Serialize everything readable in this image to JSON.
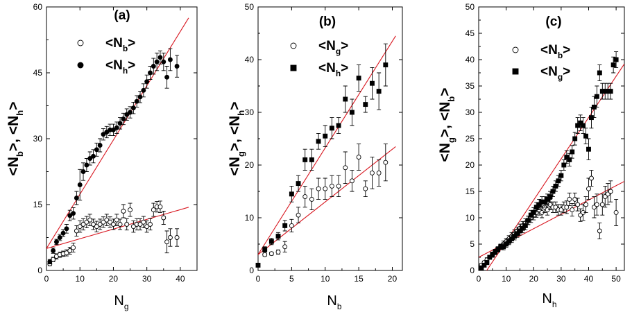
{
  "chart_data": [
    {
      "panel": "(a)",
      "type": "scatter",
      "xlabel": {
        "main": "N",
        "sub": "g"
      },
      "ylabel": {
        "a_main": "<N",
        "a_sub": "b",
        "sep": ">, ",
        "b_main": "<N",
        "b_sub": "h",
        "end": ">"
      },
      "xlim": [
        0,
        45
      ],
      "ylim": [
        0,
        60
      ],
      "xticks": [
        0,
        10,
        20,
        30,
        40
      ],
      "yticks": [
        0,
        15,
        30,
        45,
        60
      ],
      "xtick_labels": [
        "0",
        "10",
        "20",
        "30",
        "40"
      ],
      "ytick_labels": [
        "0",
        "15",
        "30",
        "45",
        "60"
      ],
      "legend": [
        {
          "open": true,
          "marker": "circle",
          "main": "<N",
          "sub": "b",
          "end": ">"
        },
        {
          "open": false,
          "marker": "circle",
          "main": "<N",
          "sub": "h",
          "end": ">"
        }
      ],
      "series": [
        {
          "marker": "circle",
          "open": true,
          "x": [
            1,
            2,
            3,
            4,
            5,
            6,
            7,
            8,
            9,
            10,
            11,
            12,
            13,
            14,
            15,
            16,
            17,
            18,
            19,
            20,
            21,
            22,
            23,
            24,
            25,
            26,
            27,
            28,
            29,
            30,
            31,
            32,
            33,
            34,
            35,
            36,
            37,
            39
          ],
          "y": [
            1.5,
            2.5,
            3.2,
            3.6,
            3.8,
            4.0,
            4.5,
            5.2,
            9.0,
            10.0,
            10.5,
            11.0,
            11.5,
            10.5,
            10.0,
            10.5,
            11.0,
            11.5,
            11.0,
            10.5,
            11.5,
            10.5,
            13.5,
            10.5,
            13.8,
            10.0,
            10.5,
            10.5,
            11.0,
            10.0,
            10.5,
            13.8,
            14.5,
            14.5,
            12.0,
            6.5,
            7.5,
            7.5
          ],
          "err": [
            0.4,
            0.5,
            0.6,
            0.6,
            0.6,
            0.7,
            0.8,
            1.0,
            1.2,
            1.3,
            1.3,
            1.3,
            1.3,
            1.2,
            1.2,
            1.2,
            1.2,
            1.3,
            1.2,
            1.2,
            1.3,
            1.2,
            1.5,
            1.3,
            1.5,
            1.3,
            1.3,
            1.3,
            1.3,
            1.3,
            1.3,
            1.5,
            1.2,
            1.3,
            1.5,
            2.5,
            2.0,
            2.0
          ]
        },
        {
          "marker": "circle",
          "open": false,
          "x": [
            1,
            2,
            3,
            4,
            5,
            6,
            7,
            8,
            9,
            10,
            11,
            12,
            13,
            14,
            15,
            16,
            17,
            18,
            19,
            20,
            21,
            22,
            23,
            24,
            25,
            26,
            27,
            28,
            29,
            30,
            31,
            32,
            33,
            34,
            35,
            36,
            37,
            39
          ],
          "y": [
            2.0,
            4.5,
            6.5,
            7.5,
            8.5,
            9.5,
            12.5,
            13.0,
            16.5,
            19.5,
            22.5,
            24.0,
            25.5,
            26.0,
            27.5,
            28.5,
            31.0,
            31.5,
            32.0,
            32.0,
            32.5,
            33.5,
            34.5,
            35.5,
            36.0,
            37.0,
            38.5,
            39.5,
            41.0,
            43.0,
            45.0,
            46.5,
            47.5,
            48.5,
            47.5,
            44.0,
            48.0,
            46.5
          ],
          "err": [
            0.5,
            0.6,
            0.6,
            0.7,
            0.8,
            1.0,
            1.2,
            1.3,
            1.5,
            3.5,
            2.0,
            1.5,
            1.5,
            1.5,
            1.5,
            1.5,
            1.3,
            1.3,
            1.3,
            1.3,
            1.3,
            1.3,
            1.3,
            1.3,
            1.3,
            1.3,
            1.3,
            1.3,
            1.5,
            1.5,
            1.5,
            1.8,
            2.0,
            1.5,
            2.0,
            2.5,
            2.5,
            2.5
          ]
        }
      ],
      "fits": [
        {
          "from": [
            0,
            5.0
          ],
          "to": [
            42.5,
            14.4
          ]
        },
        {
          "from": [
            0,
            5.0
          ],
          "to": [
            42.5,
            57.5
          ]
        }
      ]
    },
    {
      "panel": "(b)",
      "type": "scatter",
      "xlabel": {
        "main": "N",
        "sub": "b"
      },
      "ylabel": {
        "a_main": "<N",
        "a_sub": "g",
        "sep": ">, ",
        "b_main": "<N",
        "b_sub": "h",
        "end": ">"
      },
      "xlim": [
        0,
        21.5
      ],
      "ylim": [
        0,
        50
      ],
      "xticks": [
        0,
        5,
        10,
        15,
        20
      ],
      "yticks": [
        0,
        10,
        20,
        30,
        40,
        50
      ],
      "xtick_labels": [
        "0",
        "5",
        "10",
        "15",
        "20"
      ],
      "ytick_labels": [
        "0",
        "10",
        "20",
        "30",
        "40",
        "50"
      ],
      "legend": [
        {
          "open": true,
          "marker": "circle",
          "main": "<N",
          "sub": "g",
          "end": ">"
        },
        {
          "open": false,
          "marker": "square",
          "main": "<N",
          "sub": "h",
          "end": ">"
        }
      ],
      "series": [
        {
          "marker": "circle",
          "open": true,
          "x": [
            1,
            2,
            3,
            4,
            5,
            6,
            7,
            8,
            9,
            10,
            11,
            12,
            13,
            14,
            15,
            16,
            17,
            18,
            19
          ],
          "y": [
            3.0,
            3.2,
            3.5,
            4.5,
            8.5,
            10.5,
            14.0,
            13.5,
            15.5,
            15.5,
            16.0,
            16.0,
            19.5,
            17.0,
            21.5,
            15.5,
            18.5,
            18.5,
            20.5
          ],
          "err": [
            0.3,
            0.3,
            0.4,
            1.0,
            1.2,
            1.5,
            2.0,
            2.0,
            2.0,
            2.0,
            2.0,
            2.0,
            3.0,
            2.0,
            2.5,
            1.5,
            3.0,
            2.5,
            3.5
          ]
        },
        {
          "marker": "square",
          "open": false,
          "x": [
            0,
            1,
            2,
            3,
            4,
            5,
            6,
            7,
            8,
            9,
            10,
            11,
            12,
            13,
            14,
            15,
            16,
            17,
            18,
            19
          ],
          "y": [
            1.0,
            4.0,
            5.5,
            6.5,
            8.5,
            14.5,
            16.5,
            21.0,
            21.0,
            24.5,
            25.5,
            27.0,
            27.5,
            32.5,
            30.0,
            36.5,
            31.5,
            35.5,
            34.0,
            39.0
          ],
          "err": [
            0.3,
            0.5,
            0.6,
            0.7,
            1.0,
            1.5,
            1.5,
            2.0,
            2.0,
            1.5,
            2.0,
            2.0,
            1.5,
            2.5,
            2.5,
            2.5,
            1.5,
            3.0,
            3.5,
            4.0
          ]
        }
      ],
      "fits": [
        {
          "from": [
            0,
            3.0
          ],
          "to": [
            20.5,
            23.5
          ]
        },
        {
          "from": [
            0,
            3.0
          ],
          "to": [
            20.5,
            44.5
          ]
        }
      ]
    },
    {
      "panel": "(c)",
      "type": "scatter",
      "xlabel": {
        "main": "N",
        "sub": "h"
      },
      "ylabel": {
        "a_main": "<N",
        "a_sub": "g",
        "sep": ">, ",
        "b_main": "<N",
        "b_sub": "b",
        "end": ">"
      },
      "xlim": [
        0,
        53
      ],
      "ylim": [
        0,
        50
      ],
      "xticks": [
        0,
        10,
        20,
        30,
        40,
        50
      ],
      "yticks": [
        0,
        5,
        10,
        15,
        20,
        25,
        30,
        35,
        40,
        45,
        50
      ],
      "xtick_labels": [
        "0",
        "10",
        "20",
        "30",
        "40",
        "50"
      ],
      "ytick_labels": [
        "0",
        "5",
        "10",
        "15",
        "20",
        "25",
        "30",
        "35",
        "40",
        "45",
        "50"
      ],
      "legend": [
        {
          "open": true,
          "marker": "circle",
          "main": "<N",
          "sub": "b",
          "end": ">"
        },
        {
          "open": false,
          "marker": "square",
          "main": "<N",
          "sub": "g",
          "end": ">"
        }
      ],
      "series": [
        {
          "marker": "circle",
          "open": true,
          "x": [
            1,
            2,
            3,
            4,
            5,
            6,
            7,
            8,
            9,
            10,
            11,
            12,
            13,
            14,
            15,
            16,
            17,
            18,
            19,
            20,
            21,
            22,
            23,
            24,
            25,
            26,
            27,
            28,
            29,
            30,
            31,
            32,
            33,
            34,
            35,
            36,
            37,
            38,
            39,
            40,
            41,
            42,
            43,
            44,
            45,
            46,
            47,
            48,
            50
          ],
          "y": [
            1.0,
            1.5,
            2.0,
            2.5,
            3.0,
            3.5,
            4.0,
            4.5,
            5.0,
            5.5,
            6.0,
            6.5,
            7.0,
            7.5,
            8.0,
            8.5,
            9.0,
            9.5,
            10.0,
            10.5,
            11.0,
            11.5,
            11.0,
            12.0,
            11.5,
            12.5,
            12.0,
            12.0,
            11.5,
            11.5,
            12.0,
            12.0,
            13.5,
            11.5,
            13.5,
            12.5,
            10.5,
            11.0,
            12.5,
            15.5,
            17.5,
            12.0,
            12.5,
            7.5,
            12.5,
            14.0,
            14.5,
            15.0,
            11.0
          ],
          "err": [
            0.3,
            0.3,
            0.4,
            0.4,
            0.5,
            0.5,
            0.5,
            0.5,
            0.6,
            0.6,
            0.6,
            0.7,
            0.7,
            0.7,
            0.8,
            0.8,
            0.8,
            0.8,
            0.9,
            0.9,
            0.9,
            1.0,
            1.0,
            1.0,
            1.0,
            1.0,
            1.0,
            1.0,
            1.0,
            1.0,
            1.0,
            1.2,
            1.2,
            1.2,
            1.2,
            1.2,
            1.2,
            1.5,
            1.5,
            2.0,
            1.5,
            2.0,
            2.0,
            1.5,
            2.0,
            2.0,
            2.0,
            2.0,
            2.5
          ]
        },
        {
          "marker": "square",
          "open": false,
          "x": [
            1,
            2,
            3,
            4,
            5,
            6,
            7,
            8,
            9,
            10,
            11,
            12,
            13,
            14,
            15,
            16,
            17,
            18,
            19,
            20,
            21,
            22,
            23,
            24,
            25,
            26,
            27,
            28,
            29,
            30,
            31,
            32,
            33,
            34,
            35,
            36,
            37,
            38,
            39,
            40,
            41,
            42,
            43,
            44,
            45,
            46,
            47,
            48,
            49,
            50
          ],
          "y": [
            0.5,
            1.0,
            1.5,
            2.5,
            3.0,
            3.5,
            4.0,
            4.5,
            4.5,
            5.0,
            5.5,
            6.0,
            6.5,
            7.0,
            7.5,
            8.0,
            8.5,
            9.5,
            10.5,
            11.0,
            12.0,
            12.5,
            13.0,
            13.0,
            13.5,
            14.0,
            15.0,
            16.0,
            17.0,
            18.0,
            20.0,
            21.5,
            21.0,
            22.5,
            25.0,
            27.5,
            28.0,
            27.5,
            25.5,
            23.0,
            29.0,
            31.0,
            33.0,
            37.5,
            34.0,
            34.0,
            34.0,
            34.0,
            39.0,
            40.0
          ],
          "err": [
            0.3,
            0.3,
            0.4,
            0.4,
            0.5,
            0.5,
            0.5,
            0.5,
            0.6,
            0.6,
            0.6,
            0.7,
            0.7,
            0.7,
            0.8,
            0.8,
            0.8,
            0.8,
            0.9,
            0.9,
            0.9,
            1.0,
            1.0,
            1.0,
            1.0,
            1.0,
            1.0,
            1.0,
            1.0,
            1.0,
            1.0,
            1.2,
            1.2,
            1.2,
            1.2,
            1.5,
            1.5,
            1.5,
            1.5,
            2.0,
            2.0,
            2.0,
            2.0,
            1.5,
            1.5,
            1.5,
            1.5,
            1.5,
            1.5,
            1.5
          ]
        }
      ],
      "fits": [
        {
          "from": [
            0,
            2.5
          ],
          "to": [
            53,
            16.9
          ]
        },
        {
          "from": [
            0,
            -2.3
          ],
          "to": [
            53,
            39.2
          ]
        }
      ]
    }
  ]
}
